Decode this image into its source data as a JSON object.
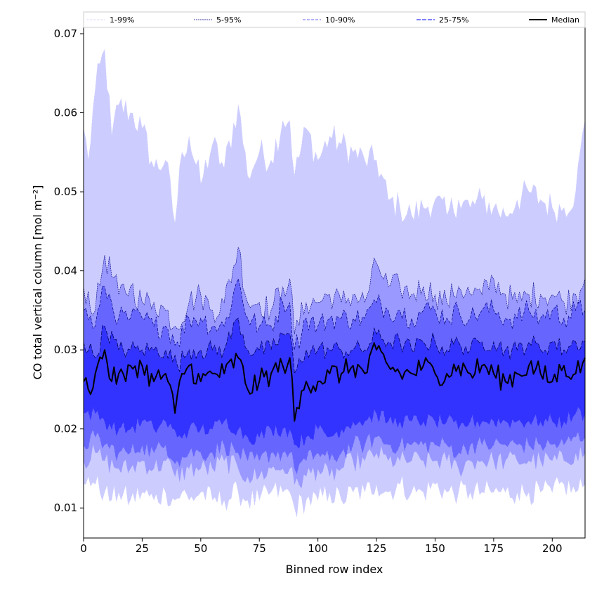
{
  "chart_data": {
    "type": "area",
    "title": "",
    "xlabel": "Binned row index",
    "ylabel": "CO total vertical column [mol m⁻²]",
    "xlim": [
      0,
      214
    ],
    "ylim": [
      0.0062,
      0.0708
    ],
    "x_ticks": [
      0,
      25,
      50,
      75,
      100,
      125,
      150,
      175,
      200
    ],
    "y_ticks": [
      0.01,
      0.02,
      0.03,
      0.04,
      0.05,
      0.06,
      0.07
    ],
    "grid": false,
    "legend": {
      "placement": "top, above plot",
      "entries": [
        "1-99%",
        "5-95%",
        "10-90%",
        "25-75%",
        "Median"
      ]
    },
    "x": "0..214 (integer row bins)",
    "series": [
      {
        "name": "1-99%",
        "color": "#ccccff",
        "anchors_x": [
          0,
          2,
          5,
          9,
          12,
          15,
          20,
          25,
          30,
          35,
          39,
          42,
          45,
          50,
          55,
          60,
          66,
          70,
          75,
          80,
          85,
          88,
          90,
          95,
          100,
          105,
          110,
          115,
          120,
          125,
          130,
          135,
          140,
          145,
          150,
          155,
          160,
          165,
          170,
          175,
          180,
          185,
          190,
          195,
          200,
          205,
          210,
          214
        ],
        "upper": [
          0.058,
          0.054,
          0.063,
          0.068,
          0.057,
          0.061,
          0.06,
          0.058,
          0.053,
          0.054,
          0.046,
          0.055,
          0.057,
          0.051,
          0.056,
          0.053,
          0.061,
          0.052,
          0.055,
          0.054,
          0.059,
          0.059,
          0.052,
          0.058,
          0.054,
          0.057,
          0.056,
          0.055,
          0.054,
          0.054,
          0.049,
          0.048,
          0.047,
          0.048,
          0.049,
          0.047,
          0.049,
          0.048,
          0.049,
          0.048,
          0.047,
          0.049,
          0.05,
          0.049,
          0.048,
          0.048,
          0.05,
          0.059
        ],
        "lower": [
          0.013,
          0.014,
          0.013,
          0.012,
          0.011,
          0.012,
          0.011,
          0.012,
          0.011,
          0.012,
          0.011,
          0.012,
          0.011,
          0.012,
          0.011,
          0.011,
          0.012,
          0.011,
          0.011,
          0.012,
          0.012,
          0.012,
          0.01,
          0.011,
          0.011,
          0.012,
          0.011,
          0.012,
          0.012,
          0.013,
          0.012,
          0.013,
          0.012,
          0.012,
          0.013,
          0.012,
          0.012,
          0.012,
          0.012,
          0.012,
          0.012,
          0.012,
          0.012,
          0.012,
          0.012,
          0.013,
          0.012,
          0.013
        ]
      },
      {
        "name": "5-95%",
        "color": "#9999ff",
        "anchors_x": [
          0,
          5,
          9,
          15,
          20,
          25,
          30,
          35,
          39,
          45,
          50,
          55,
          60,
          66,
          70,
          75,
          80,
          85,
          88,
          90,
          95,
          100,
          105,
          110,
          115,
          120,
          125,
          130,
          135,
          140,
          145,
          150,
          155,
          160,
          165,
          170,
          175,
          180,
          185,
          190,
          195,
          200,
          205,
          210,
          214
        ],
        "upper": [
          0.038,
          0.035,
          0.042,
          0.037,
          0.038,
          0.036,
          0.036,
          0.035,
          0.033,
          0.036,
          0.037,
          0.035,
          0.036,
          0.043,
          0.036,
          0.036,
          0.035,
          0.038,
          0.039,
          0.032,
          0.036,
          0.036,
          0.037,
          0.036,
          0.037,
          0.036,
          0.041,
          0.038,
          0.038,
          0.037,
          0.038,
          0.037,
          0.036,
          0.038,
          0.037,
          0.037,
          0.039,
          0.037,
          0.036,
          0.037,
          0.037,
          0.037,
          0.036,
          0.037,
          0.039
        ],
        "lower": [
          0.016,
          0.017,
          0.016,
          0.015,
          0.015,
          0.016,
          0.015,
          0.016,
          0.014,
          0.015,
          0.015,
          0.015,
          0.016,
          0.015,
          0.014,
          0.014,
          0.015,
          0.015,
          0.015,
          0.013,
          0.014,
          0.015,
          0.014,
          0.015,
          0.016,
          0.016,
          0.017,
          0.016,
          0.016,
          0.016,
          0.016,
          0.016,
          0.016,
          0.015,
          0.016,
          0.016,
          0.016,
          0.016,
          0.016,
          0.016,
          0.016,
          0.016,
          0.016,
          0.017,
          0.017
        ]
      },
      {
        "name": "10-90%",
        "color": "#6666ff",
        "anchors_x": [
          0,
          5,
          9,
          15,
          20,
          25,
          30,
          35,
          40,
          45,
          50,
          55,
          60,
          66,
          70,
          75,
          80,
          85,
          88,
          90,
          95,
          100,
          105,
          110,
          115,
          120,
          125,
          130,
          135,
          140,
          145,
          150,
          155,
          160,
          165,
          170,
          175,
          180,
          185,
          190,
          195,
          200,
          205,
          210,
          214
        ],
        "upper": [
          0.035,
          0.033,
          0.038,
          0.034,
          0.034,
          0.034,
          0.033,
          0.033,
          0.031,
          0.034,
          0.034,
          0.033,
          0.033,
          0.039,
          0.034,
          0.033,
          0.033,
          0.036,
          0.036,
          0.03,
          0.034,
          0.033,
          0.034,
          0.034,
          0.034,
          0.034,
          0.036,
          0.035,
          0.035,
          0.034,
          0.035,
          0.035,
          0.034,
          0.035,
          0.034,
          0.035,
          0.035,
          0.034,
          0.034,
          0.035,
          0.034,
          0.035,
          0.034,
          0.035,
          0.035
        ],
        "lower": [
          0.018,
          0.019,
          0.018,
          0.017,
          0.017,
          0.018,
          0.017,
          0.018,
          0.016,
          0.017,
          0.017,
          0.017,
          0.018,
          0.017,
          0.016,
          0.016,
          0.017,
          0.017,
          0.017,
          0.015,
          0.016,
          0.017,
          0.016,
          0.017,
          0.018,
          0.018,
          0.019,
          0.018,
          0.018,
          0.018,
          0.018,
          0.018,
          0.018,
          0.017,
          0.018,
          0.018,
          0.018,
          0.018,
          0.018,
          0.018,
          0.018,
          0.018,
          0.018,
          0.019,
          0.019
        ]
      },
      {
        "name": "25-75%",
        "color": "#3333ff",
        "anchors_x": [
          0,
          5,
          9,
          15,
          20,
          25,
          30,
          35,
          40,
          45,
          50,
          55,
          60,
          66,
          70,
          75,
          80,
          85,
          88,
          90,
          95,
          100,
          105,
          110,
          115,
          120,
          125,
          130,
          135,
          140,
          145,
          150,
          155,
          160,
          165,
          170,
          175,
          180,
          185,
          190,
          195,
          200,
          205,
          210,
          214
        ],
        "upper": [
          0.031,
          0.029,
          0.033,
          0.03,
          0.03,
          0.03,
          0.03,
          0.03,
          0.028,
          0.03,
          0.03,
          0.03,
          0.03,
          0.034,
          0.03,
          0.03,
          0.03,
          0.032,
          0.032,
          0.027,
          0.03,
          0.03,
          0.03,
          0.03,
          0.03,
          0.03,
          0.032,
          0.031,
          0.031,
          0.03,
          0.031,
          0.031,
          0.03,
          0.031,
          0.03,
          0.031,
          0.031,
          0.03,
          0.03,
          0.031,
          0.03,
          0.031,
          0.03,
          0.031,
          0.031
        ],
        "lower": [
          0.022,
          0.022,
          0.021,
          0.02,
          0.02,
          0.021,
          0.02,
          0.021,
          0.019,
          0.02,
          0.02,
          0.02,
          0.021,
          0.02,
          0.019,
          0.019,
          0.02,
          0.02,
          0.02,
          0.018,
          0.019,
          0.02,
          0.019,
          0.02,
          0.021,
          0.021,
          0.022,
          0.021,
          0.021,
          0.021,
          0.021,
          0.021,
          0.021,
          0.02,
          0.021,
          0.021,
          0.021,
          0.021,
          0.021,
          0.021,
          0.021,
          0.021,
          0.021,
          0.022,
          0.022
        ]
      },
      {
        "name": "Median",
        "color": "#000000",
        "anchors_x": [
          0,
          2,
          5,
          9,
          12,
          15,
          18,
          20,
          25,
          30,
          35,
          39,
          42,
          45,
          50,
          55,
          60,
          66,
          70,
          75,
          80,
          85,
          88,
          90,
          95,
          100,
          105,
          110,
          115,
          120,
          125,
          130,
          135,
          140,
          145,
          150,
          155,
          160,
          165,
          170,
          175,
          180,
          185,
          190,
          195,
          200,
          205,
          210,
          214
        ],
        "values": [
          0.026,
          0.025,
          0.027,
          0.03,
          0.026,
          0.027,
          0.026,
          0.028,
          0.028,
          0.026,
          0.027,
          0.022,
          0.027,
          0.028,
          0.026,
          0.027,
          0.027,
          0.029,
          0.025,
          0.026,
          0.027,
          0.028,
          0.029,
          0.021,
          0.026,
          0.026,
          0.027,
          0.027,
          0.028,
          0.027,
          0.03,
          0.028,
          0.027,
          0.027,
          0.028,
          0.027,
          0.027,
          0.028,
          0.027,
          0.028,
          0.027,
          0.026,
          0.027,
          0.028,
          0.027,
          0.026,
          0.028,
          0.027,
          0.029
        ]
      }
    ]
  }
}
